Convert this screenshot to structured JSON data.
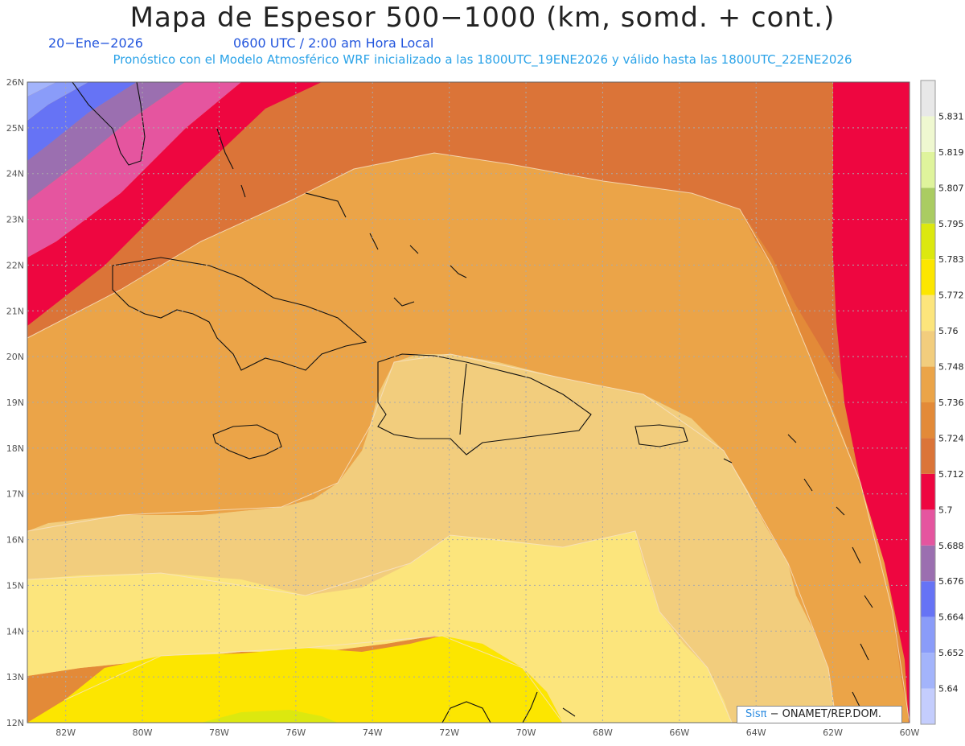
{
  "header": {
    "title": "Mapa de Espesor 500−1000 (km, somd. + cont.)",
    "date": "20−Ene−2026",
    "time": "0600 UTC / 2:00 am Hora Local",
    "subtitle": "Pronóstico con el Modelo Atmosférico WRF inicializado a las 1800UTC_19ENE2026 y válido hasta las  1800UTC_22ENE2026"
  },
  "map": {
    "lon_range": [
      -83,
      -60
    ],
    "lat_range": [
      12,
      26
    ],
    "lon_ticks": [
      "82W",
      "80W",
      "78W",
      "76W",
      "74W",
      "72W",
      "70W",
      "68W",
      "66W",
      "64W",
      "62W",
      "60W"
    ],
    "lat_ticks": [
      "12N",
      "13N",
      "14N",
      "15N",
      "16N",
      "17N",
      "18N",
      "19N",
      "20N",
      "21N",
      "22N",
      "23N",
      "24N",
      "25N",
      "26N"
    ],
    "grid": true
  },
  "legend": {
    "levels": [
      "5.64",
      "5.652",
      "5.664",
      "5.676",
      "5.688",
      "5.7",
      "5.712",
      "5.724",
      "5.736",
      "5.748",
      "5.76",
      "5.772",
      "5.783",
      "5.795",
      "5.807",
      "5.819",
      "5.831"
    ],
    "colors": [
      "#c4cdfd",
      "#a3b4fb",
      "#8a9cf9",
      "#6673f5",
      "#9b6fb0",
      "#e5559f",
      "#ee0640",
      "#db7438",
      "#e38a38",
      "#eba448",
      "#f2cd7d",
      "#fce57c",
      "#fce600",
      "#dce80f",
      "#aacc62",
      "#dff49c",
      "#eff8d0",
      "#e8e8e8"
    ]
  },
  "credit": {
    "brand": "Sisπ",
    "org": "− ONAMET/REP.DOM."
  }
}
